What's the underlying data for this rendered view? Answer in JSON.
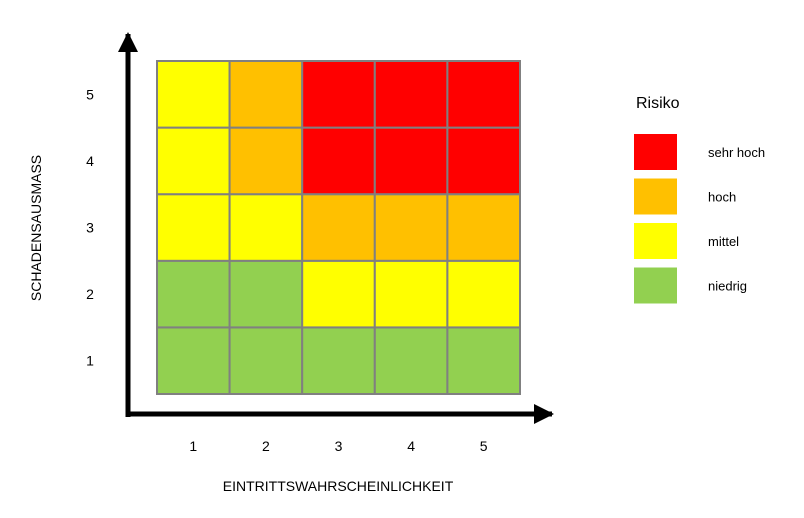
{
  "chart_data": {
    "type": "heatmap",
    "title": "",
    "xlabel": "EINTRITTSWAHRSCHEINLICHKEIT",
    "ylabel": "SCHADENSAUSMASS",
    "x_categories": [
      "1",
      "2",
      "3",
      "4",
      "5"
    ],
    "y_categories": [
      "1",
      "2",
      "3",
      "4",
      "5"
    ],
    "matrix": [
      [
        "niedrig",
        "niedrig",
        "niedrig",
        "niedrig",
        "niedrig"
      ],
      [
        "niedrig",
        "niedrig",
        "mittel",
        "mittel",
        "mittel"
      ],
      [
        "mittel",
        "mittel",
        "hoch",
        "hoch",
        "hoch"
      ],
      [
        "mittel",
        "hoch",
        "sehr hoch",
        "sehr hoch",
        "sehr hoch"
      ],
      [
        "mittel",
        "hoch",
        "sehr hoch",
        "sehr hoch",
        "sehr hoch"
      ]
    ],
    "grid": true,
    "legend": {
      "title": "Risiko",
      "placement": "right",
      "entries": [
        {
          "label": "sehr hoch",
          "color": "#ff0000"
        },
        {
          "label": "hoch",
          "color": "#ffc000"
        },
        {
          "label": "mittel",
          "color": "#ffff00"
        },
        {
          "label": "niedrig",
          "color": "#92d050"
        }
      ]
    },
    "colors": {
      "cell_border": "#808080",
      "axis": "#000000"
    }
  }
}
